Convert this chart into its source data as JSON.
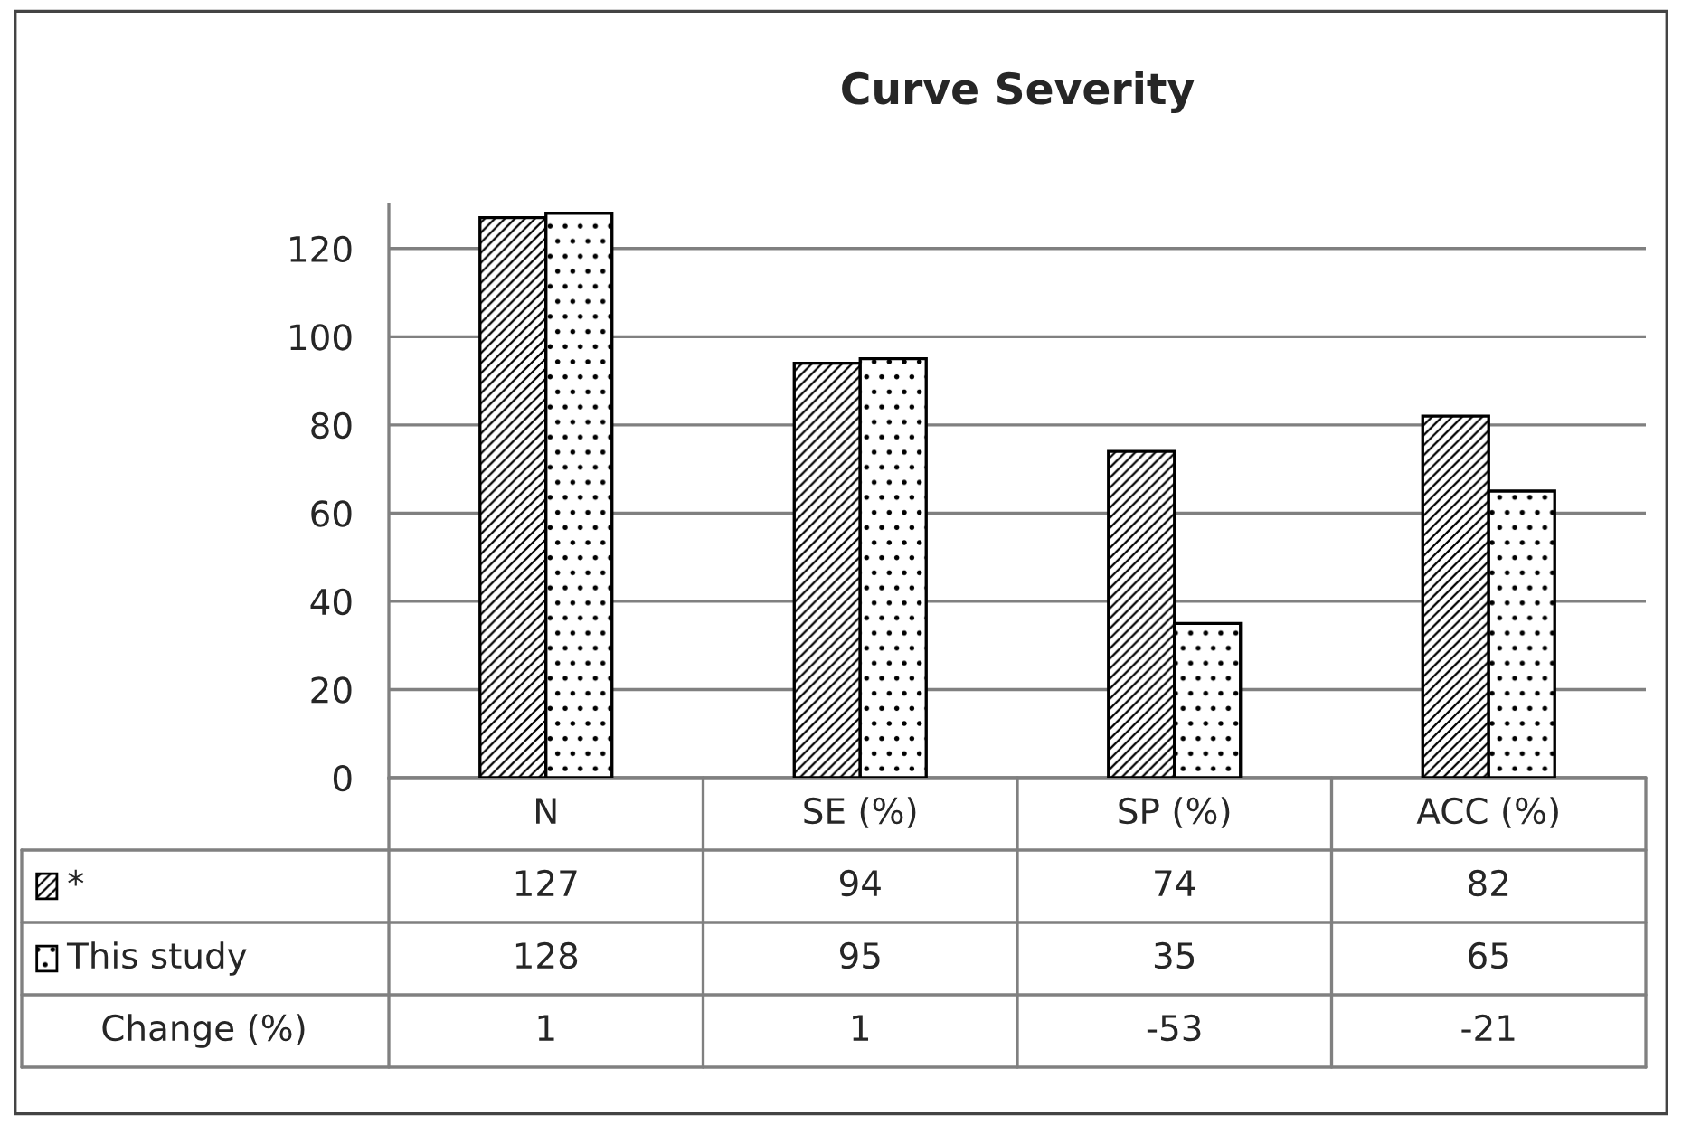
{
  "chart_data": {
    "type": "bar",
    "title": "Curve Severity",
    "categories": [
      "N",
      "SE (%)",
      "SP (%)",
      "ACC (%)"
    ],
    "series": [
      {
        "name": "*",
        "color": "#000000",
        "values": [
          127,
          94,
          74,
          82
        ]
      },
      {
        "name": "This study",
        "color": "#000000",
        "values": [
          128,
          95,
          35,
          65
        ]
      }
    ],
    "annotations": [
      "Change (%)",
      "1",
      "1",
      "-53",
      "-21"
    ],
    "ylim": [
      0,
      130
    ],
    "yticks": [
      0,
      20,
      40,
      60,
      80,
      100,
      120
    ],
    "grid": "y",
    "data_labels": true,
    "legend": "bottom left"
  }
}
